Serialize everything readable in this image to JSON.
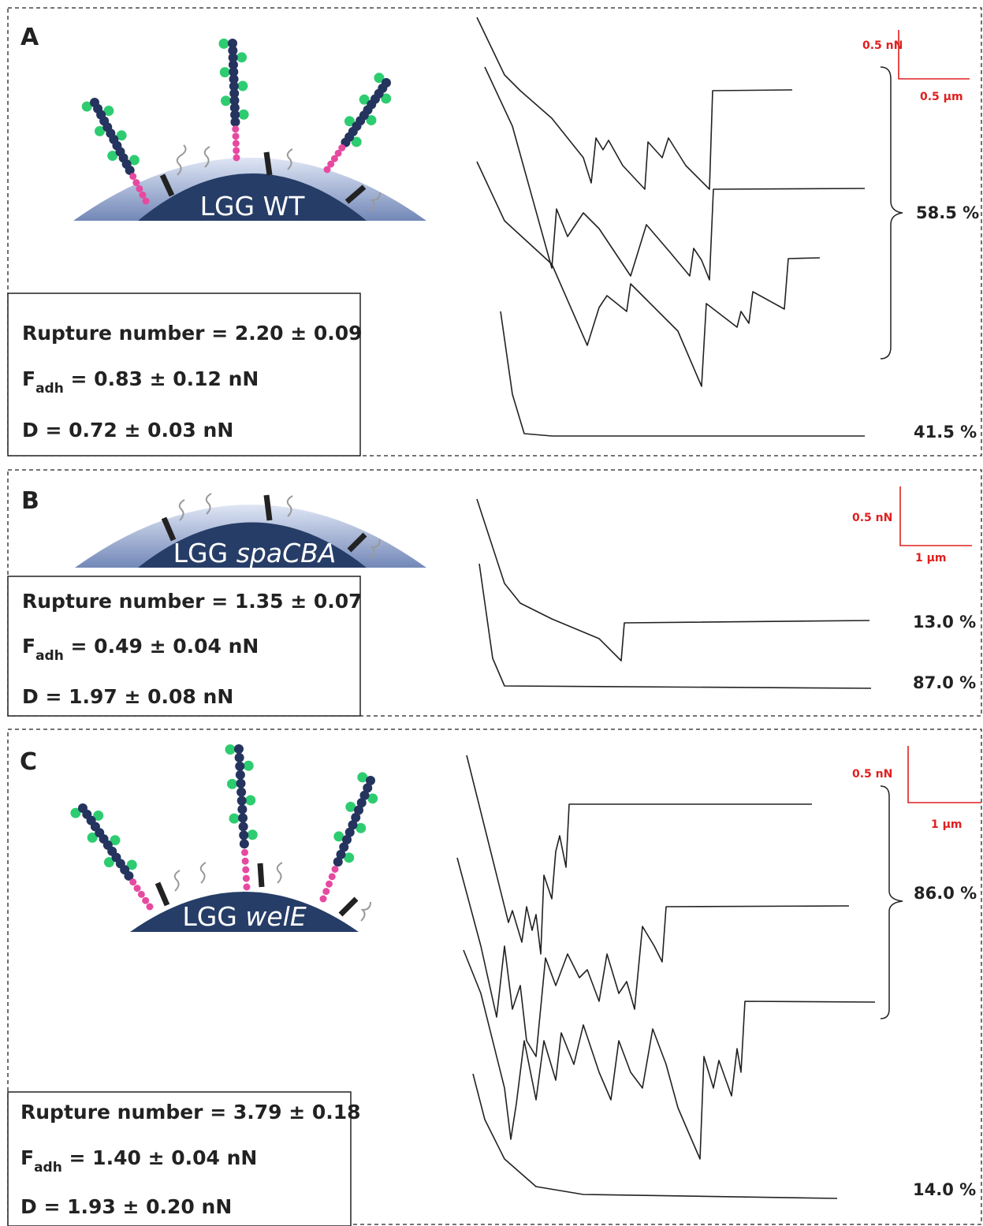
{
  "panels": [
    {
      "letter": "A",
      "cell": {
        "strain": "LGG",
        "variant": "WT"
      },
      "stats": {
        "rupture": "Rupture number = 2.20 ± 0.09",
        "fadh": {
          "symbol": "F",
          "subscript": "adh",
          "rest": " = 0.83 ± 0.12 nN"
        },
        "d": "D = 0.72 ± 0.03 nN"
      },
      "scale": {
        "force": "0.5 nN",
        "distance": "0.5 µm"
      },
      "percentages": [
        "58.5 %",
        "41.5 %"
      ]
    },
    {
      "letter": "B",
      "cell": {
        "strain": "LGG",
        "variant": "spaCBA"
      },
      "stats": {
        "rupture": "Rupture number = 1.35 ± 0.07",
        "fadh": {
          "symbol": "F",
          "subscript": "adh",
          "rest": " = 0.49 ± 0.04 nN"
        },
        "d": "D = 1.97 ± 0.08 nN"
      },
      "scale": {
        "force": "0.5 nN",
        "distance": "1 µm"
      },
      "percentages": [
        "13.0 %",
        "87.0 %"
      ]
    },
    {
      "letter": "C",
      "cell": {
        "strain": "LGG",
        "variant": "welE"
      },
      "stats": {
        "rupture": "Rupture number = 3.79 ± 0.18",
        "fadh": {
          "symbol": "F",
          "subscript": "adh",
          "rest": " = 1.40 ± 0.04 nN"
        },
        "d": "D = 1.93 ± 0.20 nN"
      },
      "scale": {
        "force": "0.5 nN",
        "distance": "1 µm"
      },
      "percentages": [
        "86.0 %",
        "14.0 %"
      ]
    }
  ]
}
